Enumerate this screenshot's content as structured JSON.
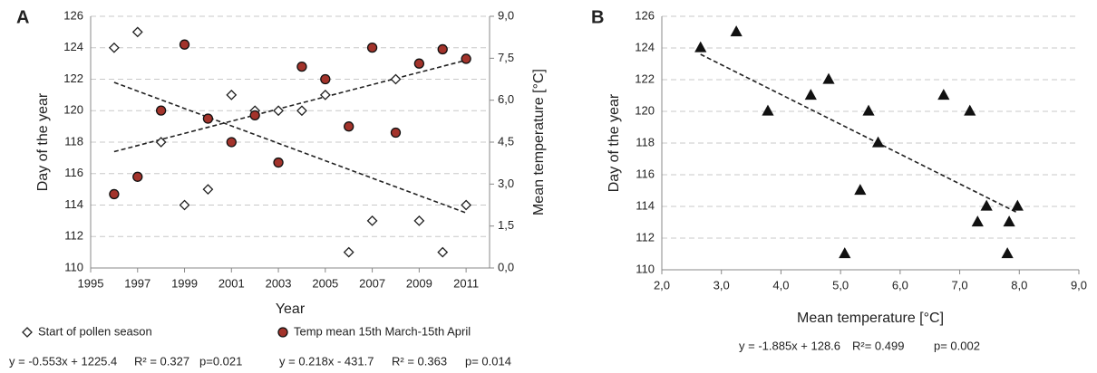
{
  "chart_data": [
    {
      "type": "scatter",
      "panel_label": "A",
      "xlabel": "Year",
      "ylabel": "Day of the year",
      "y2label": "Mean temperature [°C]",
      "xlim": [
        1995,
        2012
      ],
      "xticks": [
        1995,
        1997,
        1999,
        2001,
        2003,
        2005,
        2007,
        2009,
        2011
      ],
      "ylim": [
        110,
        126
      ],
      "yticks": [
        110,
        112,
        114,
        116,
        118,
        120,
        122,
        124,
        126
      ],
      "y2lim": [
        0,
        9
      ],
      "y2ticks": [
        {
          "value": 0,
          "label": "0,0"
        },
        {
          "value": 1.5,
          "label": "1,5"
        },
        {
          "value": 3,
          "label": "3,0"
        },
        {
          "value": 4.5,
          "label": "4,5"
        },
        {
          "value": 6,
          "label": "6,0"
        },
        {
          "value": 7.5,
          "label": "7,5"
        },
        {
          "value": 9,
          "label": "9,0"
        }
      ],
      "grid": true,
      "series": [
        {
          "name": "Start of pollen season",
          "marker": "diamond",
          "color": "#ffffff",
          "edge": "#222222",
          "axis": "y",
          "x": [
            1996,
            1997,
            1998,
            1999,
            2000,
            2001,
            2002,
            2003,
            2004,
            2005,
            2006,
            2007,
            2008,
            2009,
            2010,
            2011
          ],
          "values": [
            124,
            125,
            118,
            114,
            115,
            121,
            120,
            120,
            120,
            121,
            111,
            113,
            122,
            113,
            111,
            114
          ]
        },
        {
          "name": "Temp mean 15th March-15th April",
          "marker": "circle",
          "color": "#a3332b",
          "edge": "#111111",
          "axis": "y2",
          "x": [
            1996,
            1997,
            1998,
            1999,
            2000,
            2001,
            2002,
            2003,
            2004,
            2005,
            2006,
            2007,
            2008,
            2009,
            2010,
            2011
          ],
          "values": [
            2.64,
            3.26,
            5.63,
            7.99,
            5.34,
            4.5,
            5.46,
            3.77,
            7.2,
            6.75,
            5.06,
            7.88,
            4.84,
            7.31,
            7.82,
            7.48
          ]
        }
      ],
      "trendlines": [
        {
          "axis": "y",
          "x": [
            1996,
            2011
          ],
          "y": [
            121.8,
            113.5
          ]
        },
        {
          "axis": "y2",
          "x": [
            1996,
            2011
          ],
          "y": [
            4.16,
            7.43
          ]
        }
      ],
      "annotations": [
        "y = -0.553x + 1225.4",
        "R² = 0.327",
        "p=0.021",
        "y = 0.218x - 431.7",
        "R² = 0.363",
        "p= 0.014"
      ]
    },
    {
      "type": "scatter",
      "panel_label": "B",
      "xlabel": "Mean temperature [°C]",
      "ylabel": "Day of the year",
      "xlim": [
        2,
        9
      ],
      "xticks": [
        {
          "value": 2,
          "label": "2,0"
        },
        {
          "value": 3,
          "label": "3,0"
        },
        {
          "value": 4,
          "label": "4,0"
        },
        {
          "value": 5,
          "label": "5,0"
        },
        {
          "value": 6,
          "label": "6,0"
        },
        {
          "value": 7,
          "label": "7,0"
        },
        {
          "value": 8,
          "label": "8,0"
        },
        {
          "value": 9,
          "label": "9,0"
        }
      ],
      "ylim": [
        110,
        126
      ],
      "yticks": [
        110,
        112,
        114,
        116,
        118,
        120,
        122,
        124,
        126
      ],
      "grid": true,
      "series": [
        {
          "marker": "triangle",
          "color": "#111111",
          "edge": "#111111",
          "axis": "y",
          "x": [
            2.65,
            3.25,
            3.78,
            4.5,
            4.8,
            5.07,
            5.33,
            5.47,
            5.63,
            6.73,
            7.17,
            7.3,
            7.45,
            7.8,
            7.83,
            7.97
          ],
          "values": [
            124,
            125,
            120,
            121,
            122,
            111,
            115,
            120,
            118,
            121,
            120,
            113,
            114,
            111,
            113,
            114
          ]
        }
      ],
      "trendlines": [
        {
          "axis": "y",
          "x": [
            2.65,
            7.97
          ],
          "y": [
            123.6,
            113.6
          ]
        }
      ],
      "annotations": [
        "y = -1.885x + 128.6",
        "R²= 0.499",
        "p= 0.002"
      ]
    }
  ]
}
